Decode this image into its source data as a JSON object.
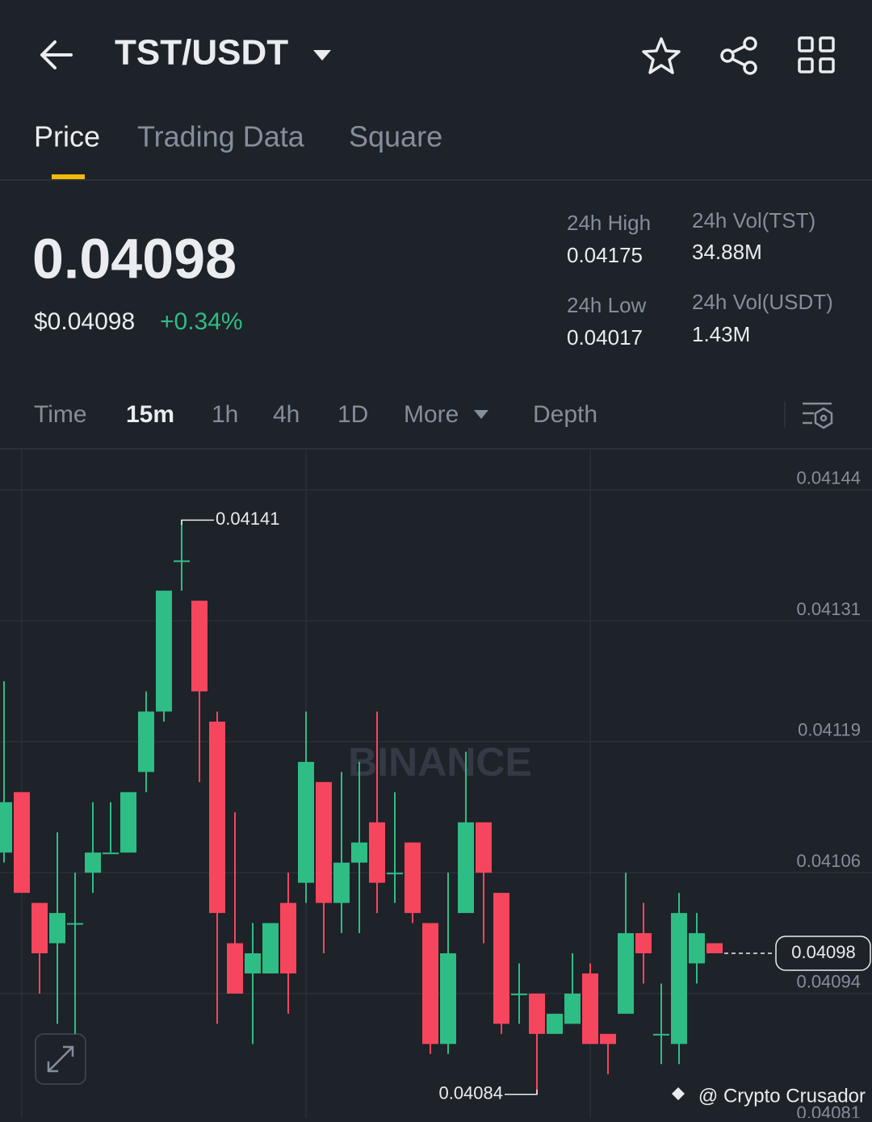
{
  "header": {
    "pair": "TST/USDT",
    "tabs": [
      "Price",
      "Trading Data",
      "Square"
    ]
  },
  "ticker": {
    "price": "0.04098",
    "price_usd": "$0.04098",
    "change": "+0.34%",
    "stats": [
      {
        "label": "24h High",
        "value": "0.04175"
      },
      {
        "label": "24h Vol(TST)",
        "value": "34.88M"
      },
      {
        "label": "24h Low",
        "value": "0.04017"
      },
      {
        "label": "24h Vol(USDT)",
        "value": "1.43M"
      }
    ]
  },
  "intervals": [
    "Time",
    "15m",
    "1h",
    "4h",
    "1D",
    "More",
    "Depth"
  ],
  "chart_data": {
    "type": "candlestick",
    "open": [
      0.04108,
      0.04114,
      0.04103,
      0.04099,
      0.04101,
      0.04106,
      0.04108,
      0.04108,
      0.04116,
      0.04122,
      0.04137,
      0.04133,
      0.04121,
      0.04099,
      0.04096,
      0.04096,
      0.04103,
      0.04105,
      0.04115,
      0.04103,
      0.04107,
      0.04111,
      0.04106,
      0.04109,
      0.04101,
      0.04089,
      0.04102,
      0.04111,
      0.04104,
      0.04094,
      0.04094,
      0.0409,
      0.04091,
      0.04096,
      0.0409,
      0.04092,
      0.041,
      0.0409,
      0.04089,
      0.04097,
      0.04099
    ],
    "high": [
      0.04125,
      0.04114,
      0.04103,
      0.0411,
      0.04106,
      0.04113,
      0.04113,
      0.04114,
      0.04124,
      0.04134,
      0.04141,
      0.04133,
      0.04122,
      0.04112,
      0.04101,
      0.04101,
      0.04106,
      0.04122,
      0.04115,
      0.04116,
      0.04117,
      0.04122,
      0.04114,
      0.04109,
      0.04101,
      0.04106,
      0.04118,
      0.04111,
      0.04104,
      0.04097,
      0.04094,
      0.04092,
      0.04098,
      0.04097,
      0.0409,
      0.04106,
      0.04103,
      0.04095,
      0.04104,
      0.04102,
      0.04099
    ],
    "low": [
      0.04107,
      0.04104,
      0.04094,
      0.04091,
      0.0409,
      0.04104,
      0.04108,
      0.04108,
      0.04114,
      0.04121,
      0.04134,
      0.04115,
      0.04091,
      0.04094,
      0.04089,
      0.04096,
      0.04092,
      0.04103,
      0.04098,
      0.041,
      0.041,
      0.04102,
      0.04103,
      0.04101,
      0.04088,
      0.04088,
      0.04102,
      0.04099,
      0.0409,
      0.04091,
      0.04084,
      0.0409,
      0.04091,
      0.04089,
      0.04086,
      0.04092,
      0.04095,
      0.04087,
      0.04087,
      0.04095,
      0.04098
    ],
    "close": [
      0.04113,
      0.04104,
      0.04098,
      0.04102,
      0.04101,
      0.04108,
      0.04108,
      0.04114,
      0.04122,
      0.04134,
      0.04137,
      0.04124,
      0.04102,
      0.04094,
      0.04098,
      0.04101,
      0.04096,
      0.04117,
      0.04103,
      0.04107,
      0.04109,
      0.04105,
      0.04106,
      0.04102,
      0.04089,
      0.04098,
      0.04111,
      0.04106,
      0.04091,
      0.04094,
      0.0409,
      0.04092,
      0.04094,
      0.04089,
      0.04089,
      0.041,
      0.04098,
      0.0409,
      0.04102,
      0.041,
      0.04098
    ],
    "up_color": "#2ebd85",
    "down_color": "#f6465d",
    "ylim": [
      0.0408,
      0.04148
    ],
    "yticks": [
      0.04144,
      0.04131,
      0.04119,
      0.04106,
      0.04094,
      0.04081
    ],
    "grid": true,
    "high_label": 0.04141,
    "low_label": 0.04084,
    "last_price": 0.04098,
    "watermark": "BINANCE",
    "credit": "@ Crypto Crusador"
  }
}
